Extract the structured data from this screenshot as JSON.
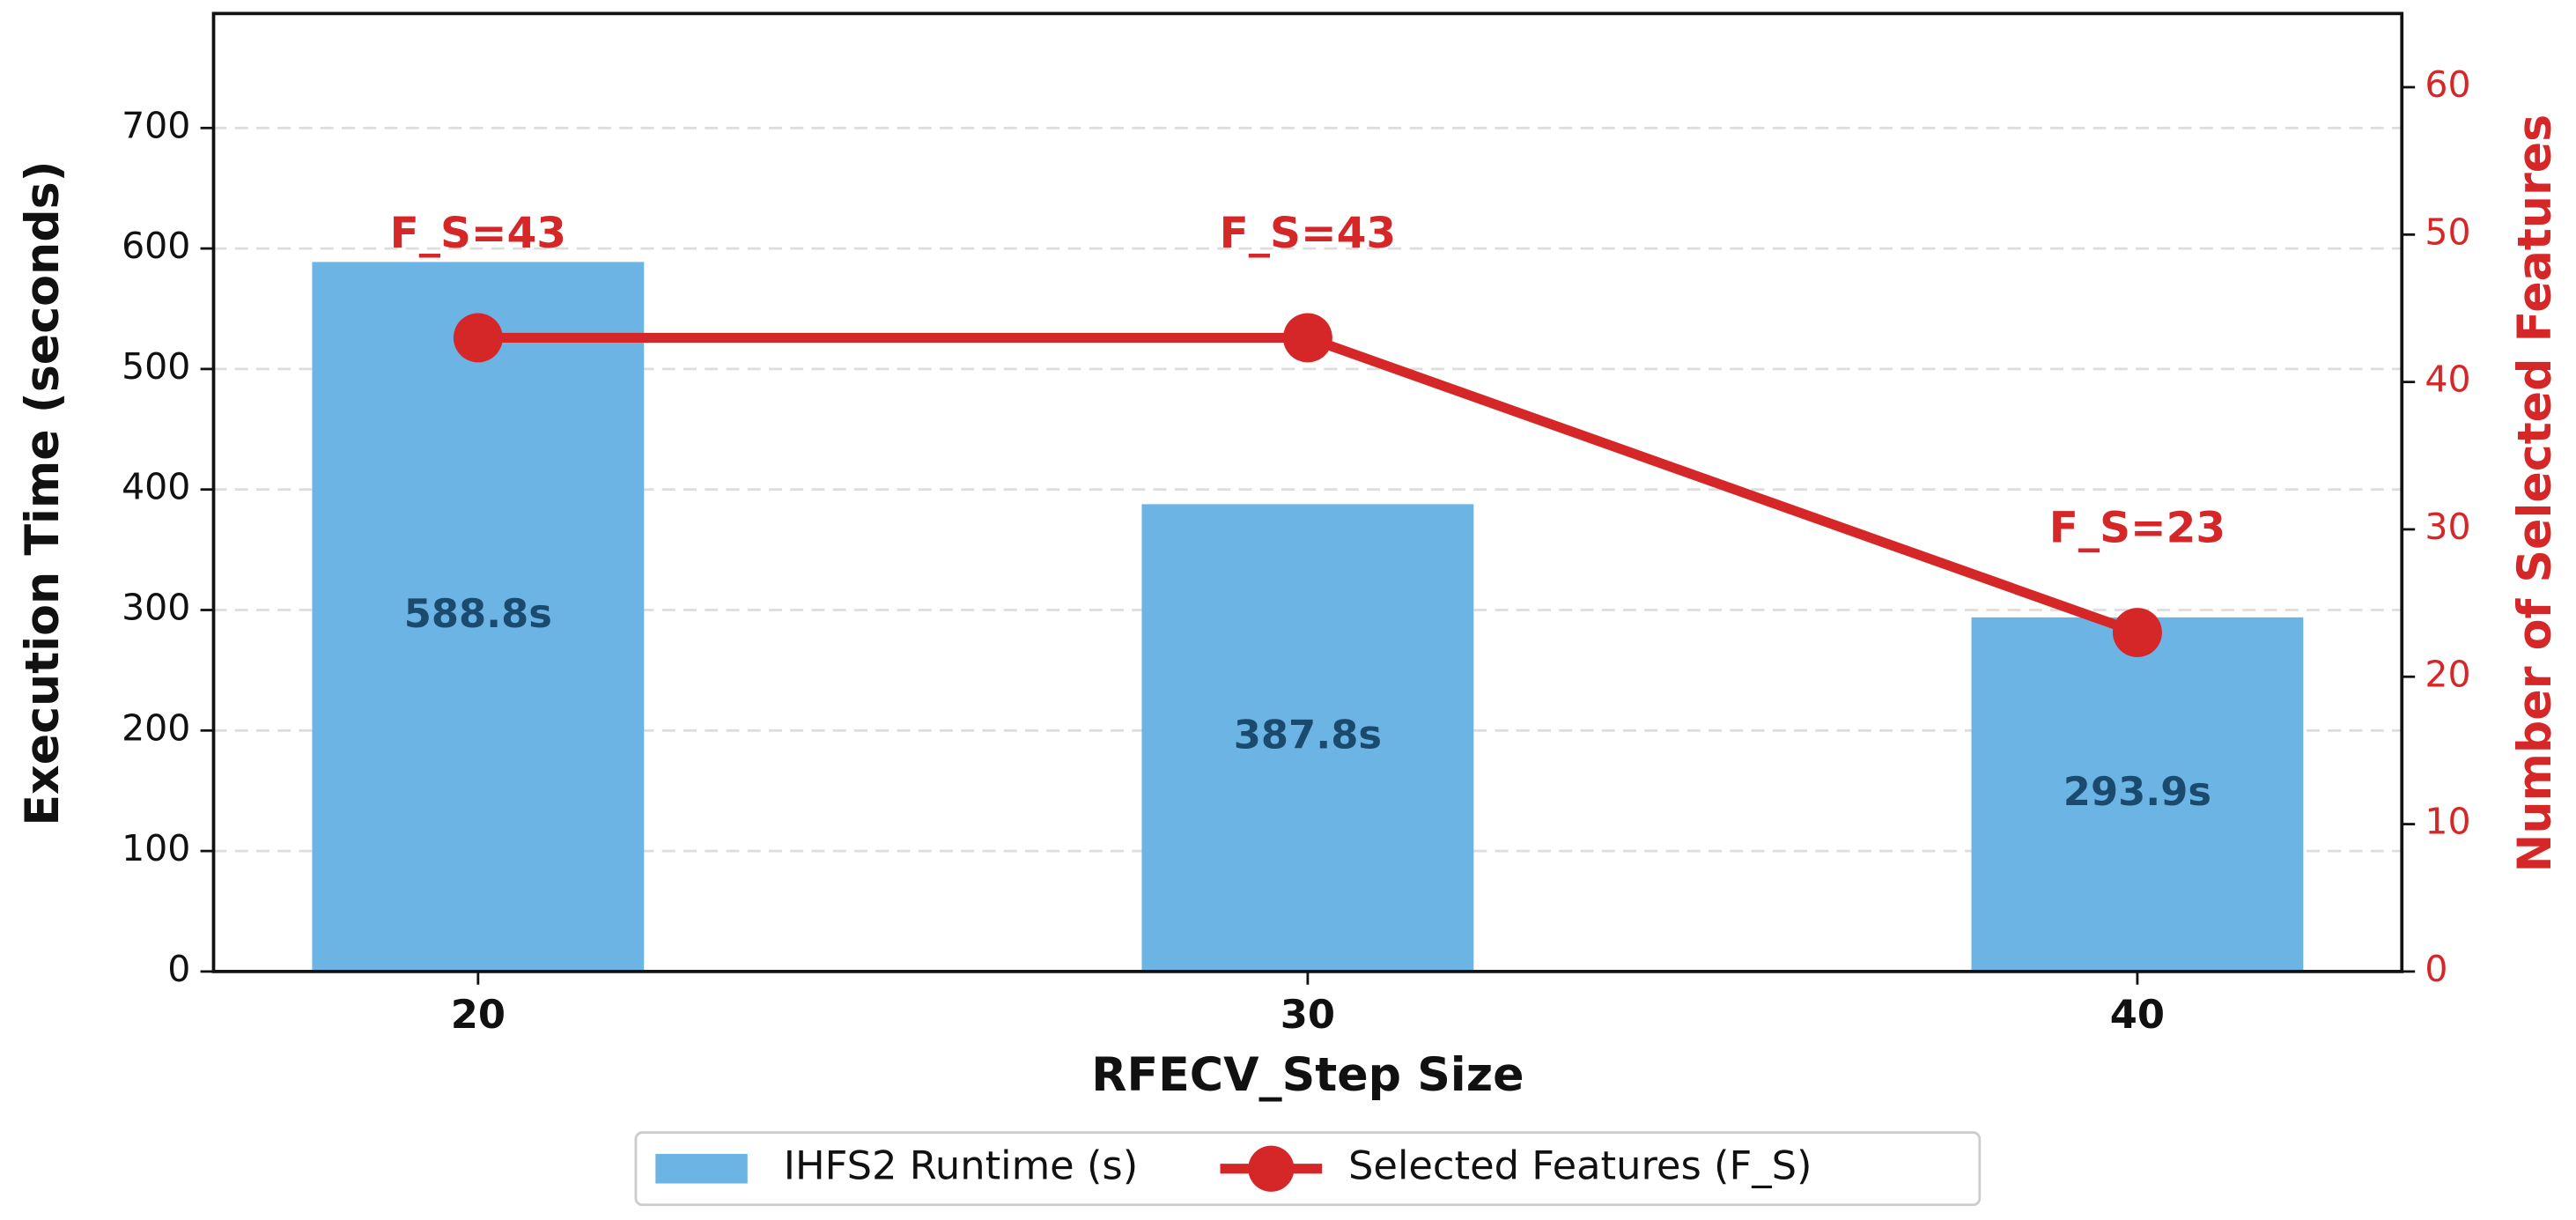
{
  "chart_data": {
    "type": "bar",
    "x_label": "RFECV_Step Size",
    "y_label": "Execution Time (seconds)",
    "y2_label": "Number of Selected Features",
    "categories": [
      "20",
      "30",
      "40"
    ],
    "series": [
      {
        "name": "IHFS2 Runtime (s)",
        "type": "bar",
        "color": "#6cb4e4",
        "values": [
          588.8,
          387.8,
          293.9
        ],
        "value_labels": [
          "588.8s",
          "387.8s",
          "293.9s"
        ]
      },
      {
        "name": "Selected Features (F_S)",
        "type": "line",
        "axis": "y2",
        "color": "#d62728",
        "values": [
          43,
          43,
          23
        ],
        "value_labels": [
          "F_S=43",
          "F_S=43",
          "F_S=23"
        ]
      }
    ],
    "ylim": [
      0,
      795
    ],
    "yticks": [
      0,
      100,
      200,
      300,
      400,
      500,
      600,
      700
    ],
    "y2lim": [
      0,
      65
    ],
    "y2ticks": [
      0,
      10,
      20,
      30,
      40,
      50,
      60
    ],
    "grid": true,
    "legend": "lower center"
  }
}
